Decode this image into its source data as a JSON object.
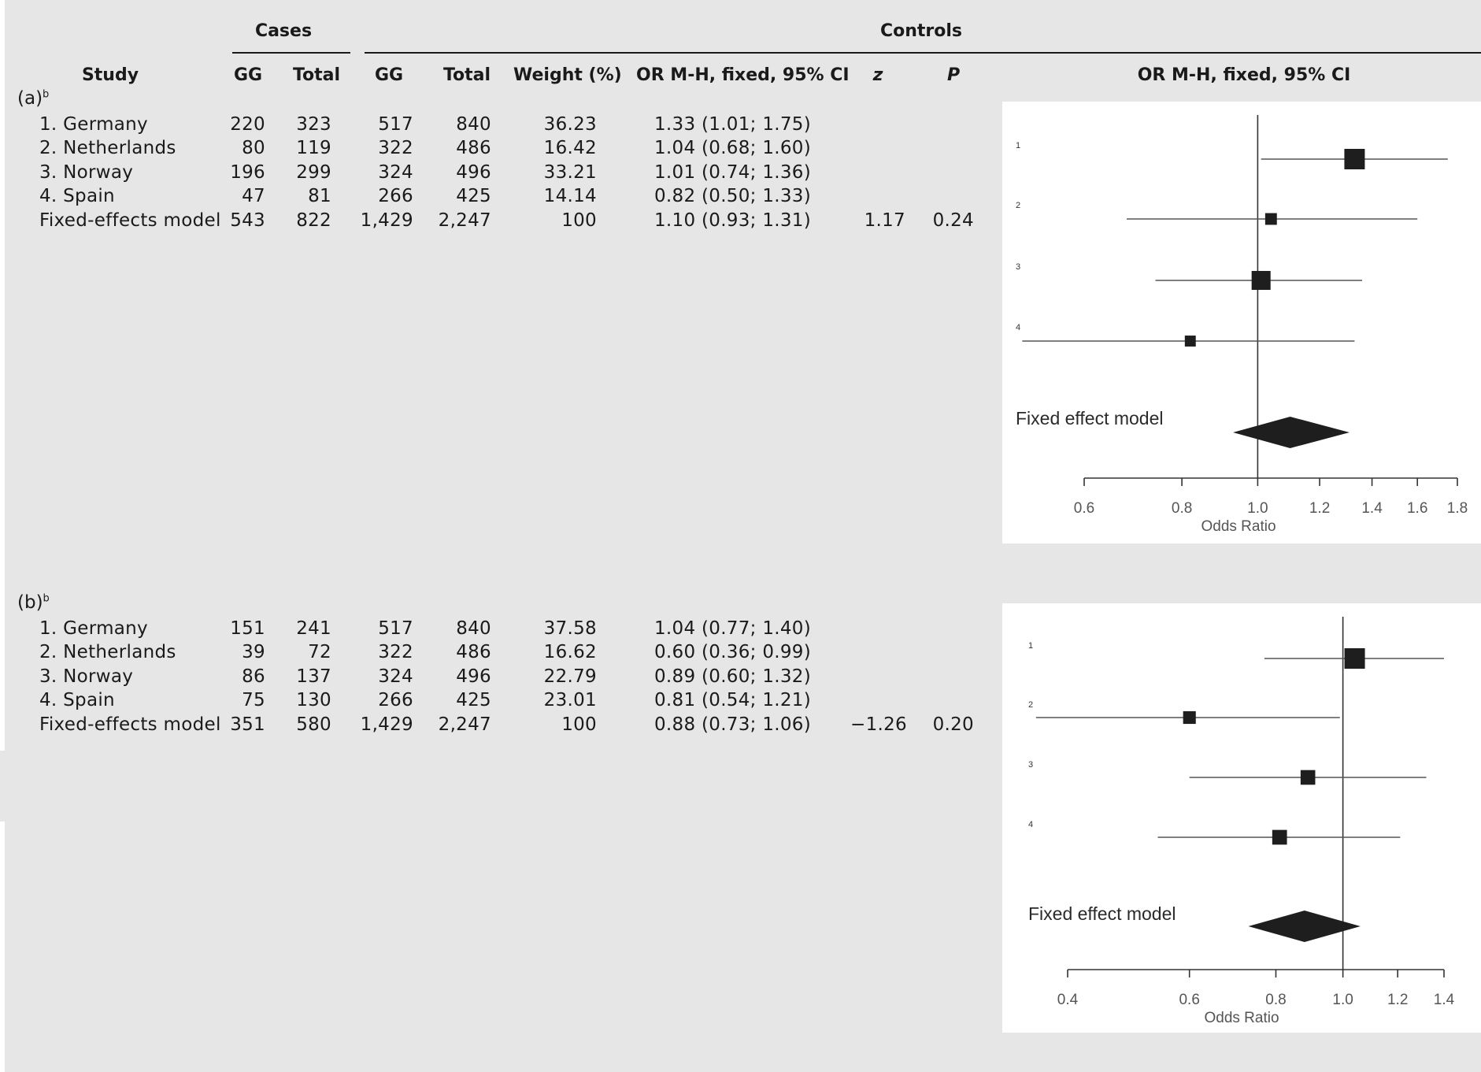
{
  "header": {
    "cases_group": "Cases",
    "controls_group": "Controls",
    "study": "Study",
    "cases_gg": "GG",
    "cases_total": "Total",
    "controls_gg": "GG",
    "controls_total": "Total",
    "weight": "Weight (%)",
    "or_ci": "OR M-H, fixed, 95% CI",
    "z": "z",
    "p": "P",
    "plot_header": "OR M-H, fixed, 95% CI"
  },
  "panels": [
    {
      "label": "(a)",
      "label_sup": "b",
      "rows": [
        {
          "study": "1. Germany",
          "cases_gg": "220",
          "cases_total": "323",
          "controls_gg": "517",
          "controls_total": "840",
          "weight": "36.23",
          "or_ci": "1.33 (1.01; 1.75)",
          "z": "",
          "p": ""
        },
        {
          "study": "2. Netherlands",
          "cases_gg": "80",
          "cases_total": "119",
          "controls_gg": "322",
          "controls_total": "486",
          "weight": "16.42",
          "or_ci": "1.04 (0.68; 1.60)",
          "z": "",
          "p": ""
        },
        {
          "study": "3. Norway",
          "cases_gg": "196",
          "cases_total": "299",
          "controls_gg": "324",
          "controls_total": "496",
          "weight": "33.21",
          "or_ci": "1.01 (0.74; 1.36)",
          "z": "",
          "p": ""
        },
        {
          "study": "4. Spain",
          "cases_gg": "47",
          "cases_total": "81",
          "controls_gg": "266",
          "controls_total": "425",
          "weight": "14.14",
          "or_ci": "0.82 (0.50; 1.33)",
          "z": "",
          "p": ""
        },
        {
          "study": "Fixed-effects model",
          "cases_gg": "543",
          "cases_total": "822",
          "controls_gg": "1,429",
          "controls_total": "2,247",
          "weight": "100",
          "or_ci": "1.10 (0.93; 1.31)",
          "z": "1.17",
          "p": "0.24"
        }
      ]
    },
    {
      "label": "(b)",
      "label_sup": "b",
      "rows": [
        {
          "study": "1. Germany",
          "cases_gg": "151",
          "cases_total": "241",
          "controls_gg": "517",
          "controls_total": "840",
          "weight": "37.58",
          "or_ci": "1.04 (0.77; 1.40)",
          "z": "",
          "p": ""
        },
        {
          "study": "2. Netherlands",
          "cases_gg": "39",
          "cases_total": "72",
          "controls_gg": "322",
          "controls_total": "486",
          "weight": "16.62",
          "or_ci": "0.60 (0.36; 0.99)",
          "z": "",
          "p": ""
        },
        {
          "study": "3. Norway",
          "cases_gg": "86",
          "cases_total": "137",
          "controls_gg": "324",
          "controls_total": "496",
          "weight": "22.79",
          "or_ci": "0.89 (0.60; 1.32)",
          "z": "",
          "p": ""
        },
        {
          "study": "4. Spain",
          "cases_gg": "75",
          "cases_total": "130",
          "controls_gg": "266",
          "controls_total": "425",
          "weight": "23.01",
          "or_ci": "0.81 (0.54; 1.21)",
          "z": "",
          "p": ""
        },
        {
          "study": "Fixed-effects model",
          "cases_gg": "351",
          "cases_total": "580",
          "controls_gg": "1,429",
          "controls_total": "2,247",
          "weight": "100",
          "or_ci": "0.88 (0.73; 1.06)",
          "z": "−1.26",
          "p": "0.20"
        }
      ]
    }
  ],
  "chart_data": [
    {
      "type": "forest",
      "scale": "log",
      "xlabel": "Odds Ratio",
      "xlim": [
        0.6,
        1.8
      ],
      "xticks": [
        0.6,
        0.8,
        1.0,
        1.2,
        1.4,
        1.6,
        1.8
      ],
      "xtick_labels": [
        "0.6",
        "0.8",
        "1.0",
        "1.2",
        "1.4",
        "1.6",
        "1.8"
      ],
      "reference_line": 1.0,
      "pooled_label": "Fixed effect model",
      "studies": [
        {
          "label": "1",
          "or": 1.33,
          "lower": 1.01,
          "upper": 1.75,
          "weight": 36.23
        },
        {
          "label": "2",
          "or": 1.04,
          "lower": 0.68,
          "upper": 1.6,
          "weight": 16.42
        },
        {
          "label": "3",
          "or": 1.01,
          "lower": 0.74,
          "upper": 1.36,
          "weight": 33.21
        },
        {
          "label": "4",
          "or": 0.82,
          "lower": 0.5,
          "upper": 1.33,
          "weight": 14.14
        }
      ],
      "pooled": {
        "or": 1.1,
        "lower": 0.93,
        "upper": 1.31
      }
    },
    {
      "type": "forest",
      "scale": "log",
      "xlabel": "Odds Ratio",
      "xlim": [
        0.4,
        1.4
      ],
      "xticks": [
        0.4,
        0.6,
        0.8,
        1.0,
        1.2,
        1.4
      ],
      "xtick_labels": [
        "0.4",
        "0.6",
        "0.8",
        "1.0",
        "1.2",
        "1.4"
      ],
      "reference_line": 1.0,
      "pooled_label": "Fixed effect model",
      "studies": [
        {
          "label": "1",
          "or": 1.04,
          "lower": 0.77,
          "upper": 1.4,
          "weight": 37.58
        },
        {
          "label": "2",
          "or": 0.6,
          "lower": 0.36,
          "upper": 0.99,
          "weight": 16.62
        },
        {
          "label": "3",
          "or": 0.89,
          "lower": 0.6,
          "upper": 1.32,
          "weight": 22.79
        },
        {
          "label": "4",
          "or": 0.81,
          "lower": 0.54,
          "upper": 1.21,
          "weight": 23.01
        }
      ],
      "pooled": {
        "or": 0.88,
        "lower": 0.73,
        "upper": 1.06
      }
    }
  ]
}
